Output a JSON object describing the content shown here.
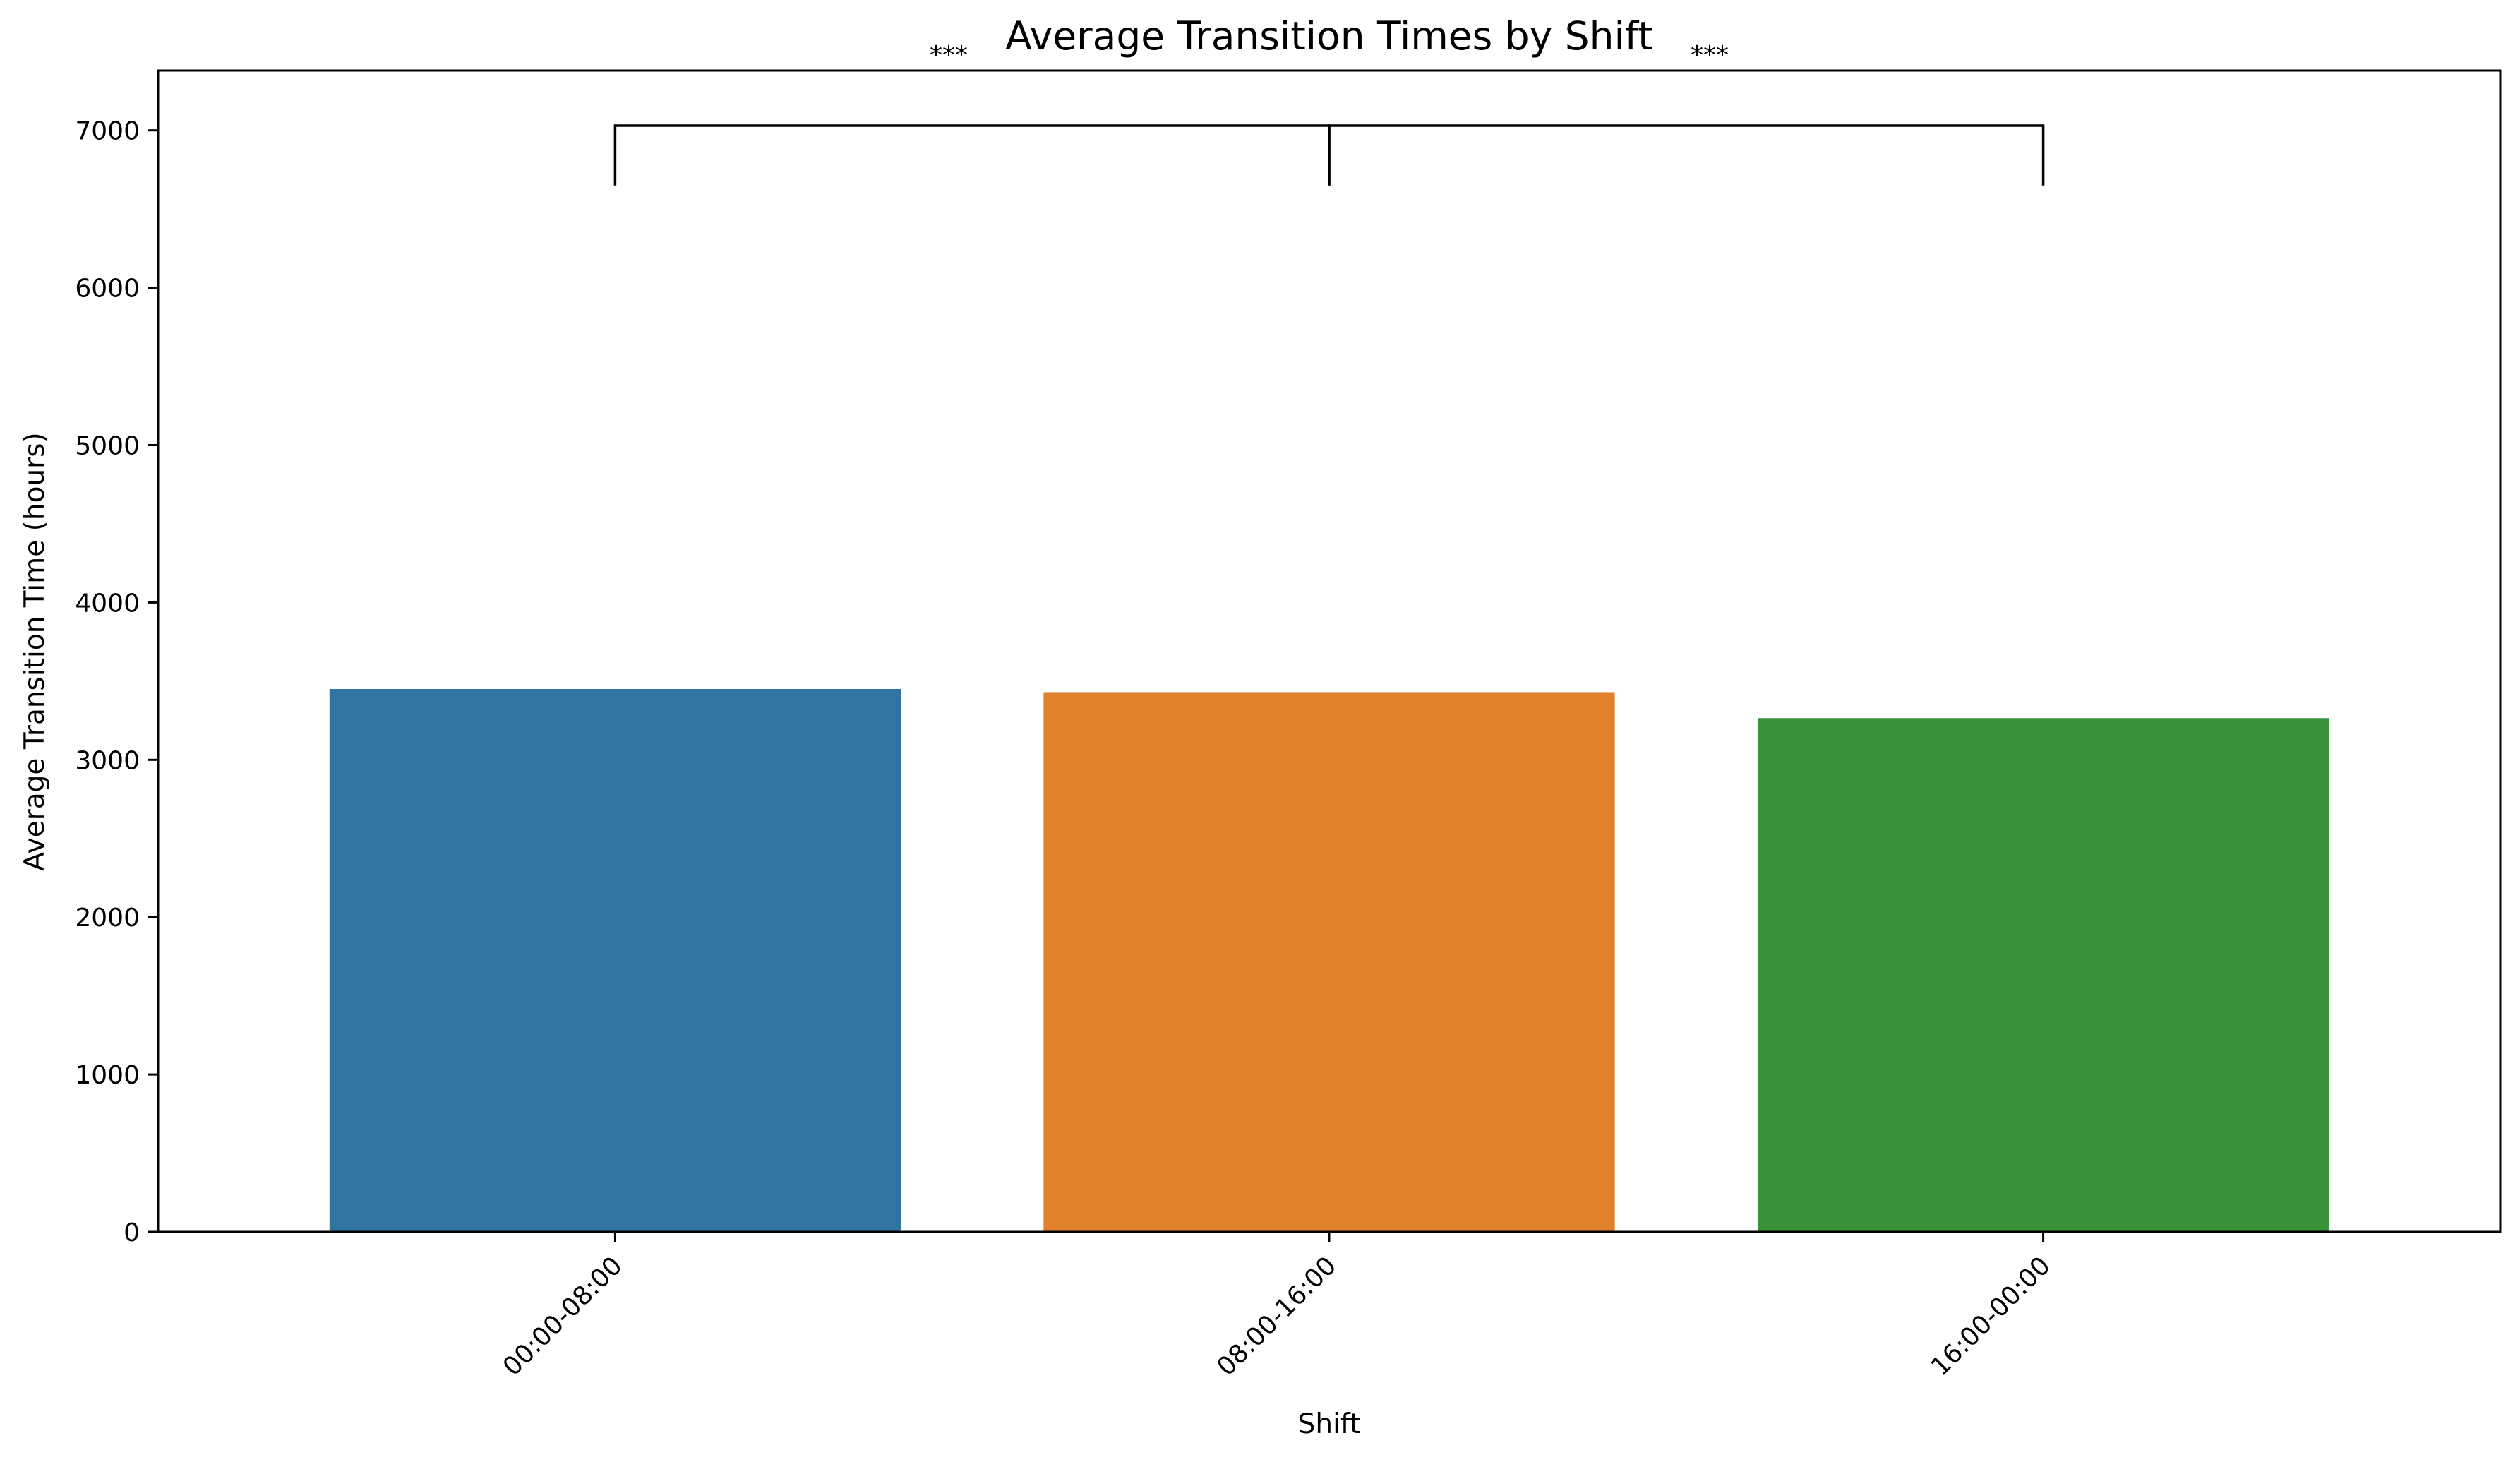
{
  "chart_data": {
    "type": "bar",
    "title": "Average Transition Times by Shift",
    "xlabel": "Shift",
    "ylabel": "Average Transition Time (hours)",
    "categories": [
      "00:00-08:00",
      "08:00-16:00",
      "16:00-00:00"
    ],
    "values": [
      3450,
      3430,
      3265
    ],
    "colors": [
      "#3274a1",
      "#e1812c",
      "#3a923a"
    ],
    "ylim": [
      0,
      7380
    ],
    "yticks": [
      0,
      1000,
      2000,
      3000,
      4000,
      5000,
      6000,
      7000
    ],
    "grid": false,
    "legend": "none",
    "significance": [
      {
        "from": "00:00-08:00",
        "to": "08:00-16:00",
        "label": "***"
      },
      {
        "from": "08:00-16:00",
        "to": "16:00-00:00",
        "label": "***"
      }
    ]
  }
}
